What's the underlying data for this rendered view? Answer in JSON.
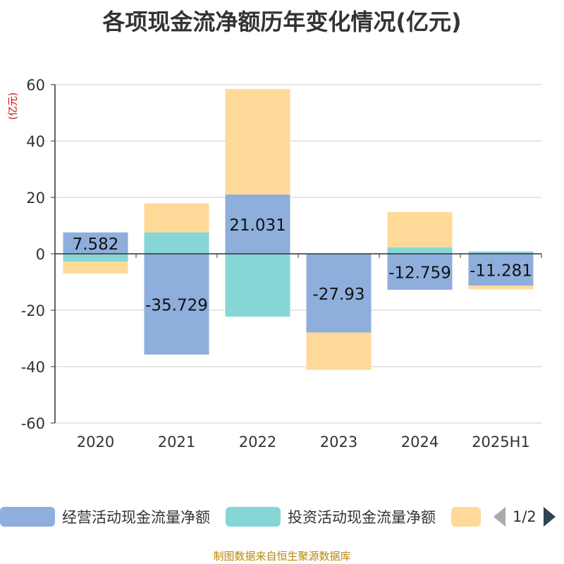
{
  "title": "各项现金流净额历年变化情况(亿元)",
  "unit_label": "(亿元)",
  "footer": "制图数据来自恒生聚源数据库",
  "legend": {
    "pager_text": "1/2"
  },
  "colors": {
    "operating": "#8eaedc",
    "investing": "#86d6d6",
    "financing": "#fed998",
    "axis": "#333333",
    "grid": "#cccccc",
    "unit": "#cc0000",
    "footer": "#b8860b"
  },
  "chart_data": {
    "type": "bar",
    "stacked": true,
    "categories": [
      "2020",
      "2021",
      "2022",
      "2023",
      "2024",
      "2025H1"
    ],
    "series": [
      {
        "name": "经营活动现金流量净额",
        "values": [
          7.582,
          -35.729,
          21.031,
          -27.93,
          -12.759,
          -11.281
        ],
        "labels": [
          "7.582",
          "-35.729",
          "21.031",
          "-27.93",
          "-12.759",
          "-11.281"
        ]
      },
      {
        "name": "投资活动现金流量净额",
        "values": [
          -2.8,
          7.6,
          -22.3,
          0,
          2.3,
          0.8
        ]
      },
      {
        "name": "",
        "values": [
          -4.2,
          10.3,
          37.4,
          -13.2,
          12.5,
          -1.3
        ]
      }
    ],
    "ylim": [
      -60,
      60
    ],
    "yticks": [
      "-60",
      "-40",
      "-20",
      "0",
      "20",
      "40",
      "60"
    ],
    "grid": true,
    "legend_position": "bottom"
  }
}
